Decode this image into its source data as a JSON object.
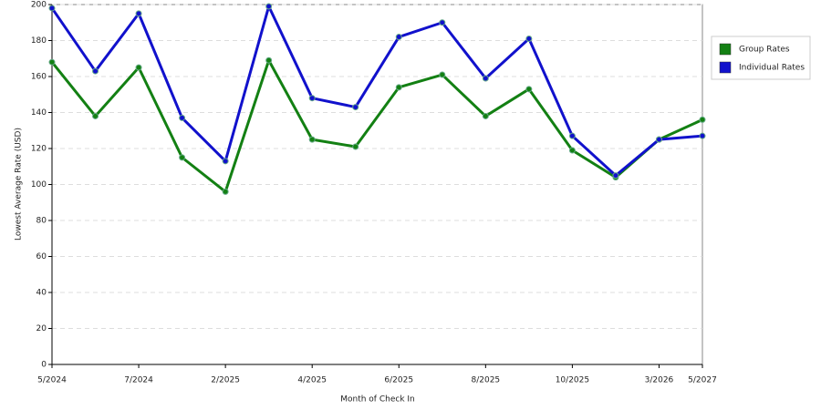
{
  "chart_data": {
    "type": "line",
    "y_label": "Lowest Average Rate (USD)",
    "x_label": "Month of Check In",
    "categories": [
      "5/2024",
      null,
      "7/2024",
      null,
      "2/2025",
      null,
      "4/2025",
      null,
      "6/2025",
      null,
      "8/2025",
      null,
      "10/2025",
      null,
      "3/2026",
      "5/2027"
    ],
    "series": [
      {
        "name": "Group Rates",
        "color": "#138013",
        "values": [
          168,
          138,
          165,
          115,
          96,
          169,
          125,
          121,
          154,
          161,
          138,
          153,
          119,
          104,
          125,
          136
        ]
      },
      {
        "name": "Individual Rates",
        "color": "#1111cc",
        "values": [
          198,
          163,
          195,
          137,
          113,
          199,
          148,
          143,
          182,
          190,
          159,
          181,
          127,
          105,
          125,
          127
        ]
      }
    ],
    "ylim": [
      0,
      200
    ],
    "yticks": [
      0,
      20,
      40,
      60,
      80,
      100,
      120,
      140,
      160,
      180,
      200
    ],
    "grid": true,
    "legend": "right"
  }
}
